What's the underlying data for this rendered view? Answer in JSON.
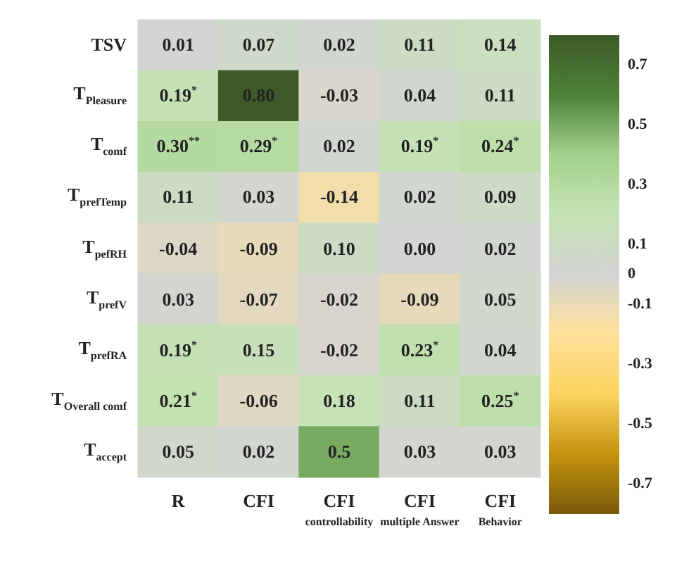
{
  "chart_data": {
    "type": "heatmap",
    "categories": [
      "R",
      "CFI",
      "CFI$_{controllability}$",
      "CFI$_{multiple Answer}$",
      "CFI$_{Behavior}$"
    ],
    "y_categories": [
      "TSV",
      "T$_{Pleasure}$",
      "T$_{comf}$",
      "T$_{prefTemp}$",
      "T$_{pefRH}$",
      "T$_{prefV}$",
      "T$_{prefRA}$",
      "T$_{Overall comf}$",
      "T$_{accept}$"
    ],
    "cells": [
      [
        0.01,
        0.07,
        0.02,
        0.11,
        0.14
      ],
      [
        0.19,
        0.8,
        -0.03,
        0.04,
        0.11
      ],
      [
        0.3,
        0.29,
        0.02,
        0.19,
        0.24
      ],
      [
        0.11,
        0.03,
        -0.14,
        0.02,
        0.09
      ],
      [
        -0.04,
        -0.09,
        0.1,
        0.0,
        0.02
      ],
      [
        0.03,
        -0.07,
        -0.02,
        -0.09,
        0.05
      ],
      [
        0.19,
        0.15,
        -0.02,
        0.23,
        0.04
      ],
      [
        0.21,
        -0.06,
        0.18,
        0.11,
        0.25
      ],
      [
        0.05,
        0.02,
        0.5,
        0.03,
        0.03
      ]
    ],
    "cell_labels": [
      [
        "0.01",
        "0.07",
        "0.02",
        "0.11",
        "0.14"
      ],
      [
        "0.19$^{*}$",
        "0.80",
        "-0.03",
        "0.04",
        "0.11"
      ],
      [
        "0.30$^{**}$",
        "0.29$^{*}$",
        "0.02",
        "0.19$^{*}$",
        "0.24$^{*}$"
      ],
      [
        "0.11",
        "0.03",
        "-0.14",
        "0.02",
        "0.09"
      ],
      [
        "-0.04",
        "-0.09",
        "0.10",
        "0.00",
        "0.02"
      ],
      [
        "0.03",
        "-0.07",
        "-0.02",
        "-0.09",
        "0.05"
      ],
      [
        "0.19$^{*}$",
        "0.15",
        "-0.02",
        "0.23$^{*}$",
        "0.04"
      ],
      [
        "0.21$^{*}$",
        "-0.06",
        "0.18",
        "0.11",
        "0.25$^{*}$"
      ],
      [
        "0.05",
        "0.02",
        "0.5",
        "0.03",
        "0.03"
      ]
    ],
    "clim": [
      -0.8,
      0.8
    ],
    "cticks": [
      0.7,
      0.5,
      0.3,
      0.1,
      0,
      -0.1,
      -0.3,
      -0.5,
      -0.7
    ],
    "colors": [
      "#3d5a28",
      "#4e8237",
      "#a3d18d",
      "#c4e3b4",
      "#d4d4d4",
      "#ffe29a",
      "#fdd35f",
      "#c4930e",
      "#7a5a0a"
    ]
  }
}
